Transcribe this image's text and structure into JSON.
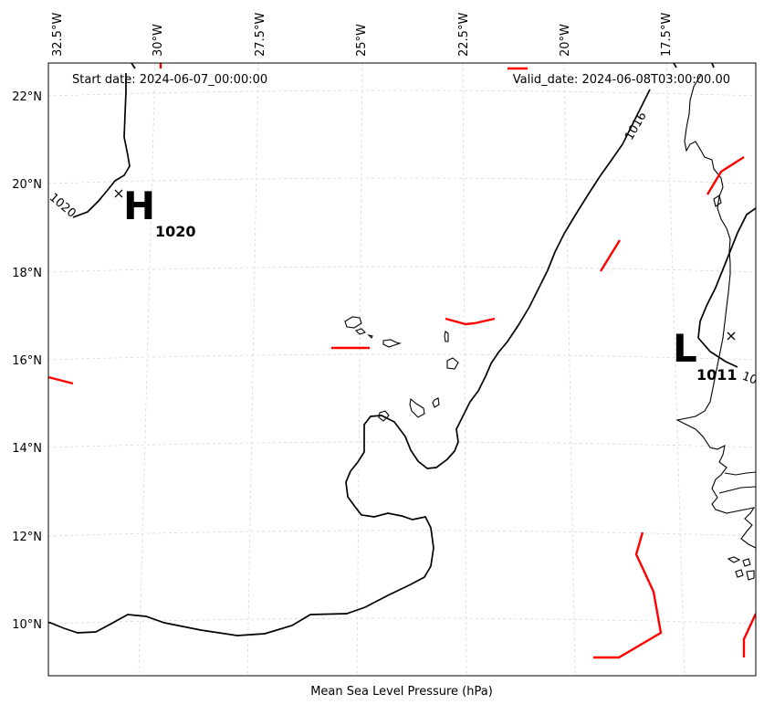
{
  "header": {
    "start_date": "Start date: 2024-06-07_00:00:00",
    "valid_date": "Valid_date: 2024-06-08T03:00:00.00"
  },
  "x_label": "Mean Sea Level Pressure (hPa)",
  "longitude_ticks": [
    "32.5°W",
    "30°W",
    "27.5°W",
    "25°W",
    "22.5°W",
    "20°W",
    "17.5°W"
  ],
  "latitude_ticks": [
    "22°N",
    "20°N",
    "18°N",
    "16°N",
    "14°N",
    "12°N",
    "10°N"
  ],
  "pressure_centers": [
    {
      "letter": "H",
      "value": "1020"
    },
    {
      "letter": "L",
      "value": "1011"
    }
  ],
  "contour_labels": [
    "1020",
    "1016",
    "10"
  ],
  "colors": {
    "isobar": "#000000",
    "front": "#ff0000",
    "gridline": "#cccccc",
    "coastline": "#000000"
  }
}
